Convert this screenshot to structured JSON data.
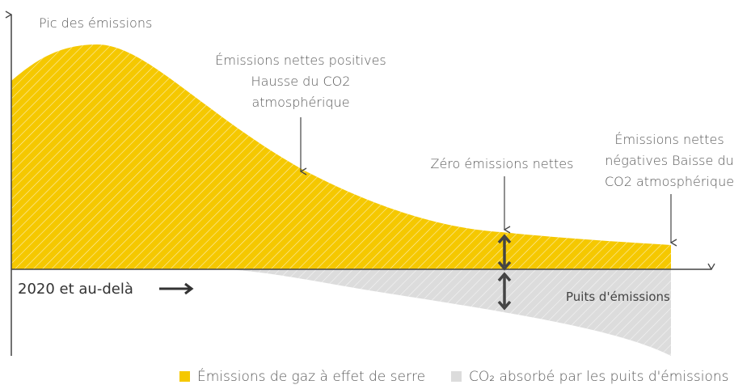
{
  "y_axis_label": "Pic des émissions",
  "annotations": {
    "positive": [
      "Émissions nettes positives",
      "Hausse du CO2",
      "atmosphérique"
    ],
    "zero": "Zéro émissions nettes",
    "negative": [
      "Émissions nettes",
      "négatives Baisse du",
      "CO2 atmosphérique"
    ]
  },
  "x_axis_label": "2020 et au-delà",
  "sink_label": "Puits d'émissions",
  "legend": [
    "Émissions de gaz à effet de serre",
    "CO₂ absorbé par les puits d'émissions"
  ]
}
